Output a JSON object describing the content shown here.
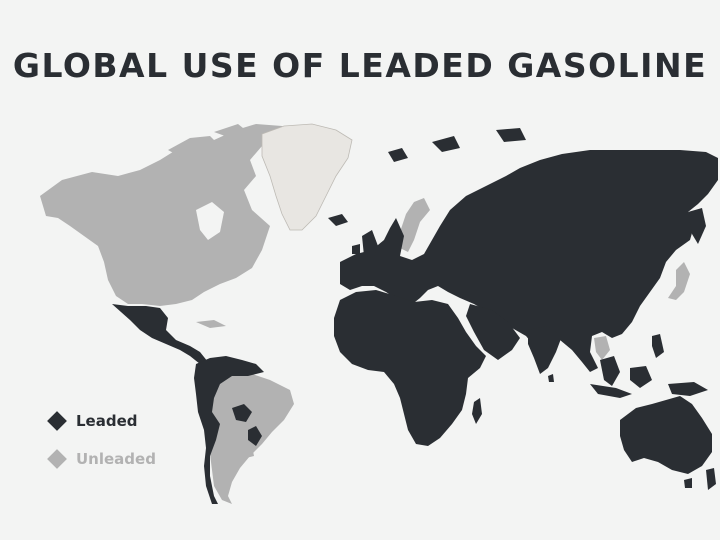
{
  "title": "GLOBAL USE OF LEADED GASOLINE",
  "legend": [
    {
      "label": "Leaded",
      "color": "#2a2e33"
    },
    {
      "label": "Unleaded",
      "color": "#b2b2b2"
    }
  ],
  "colors": {
    "leaded": "#2a2e33",
    "unleaded": "#b2b2b2",
    "greenland": "#e8e6e2",
    "background": "#f3f4f3"
  }
}
